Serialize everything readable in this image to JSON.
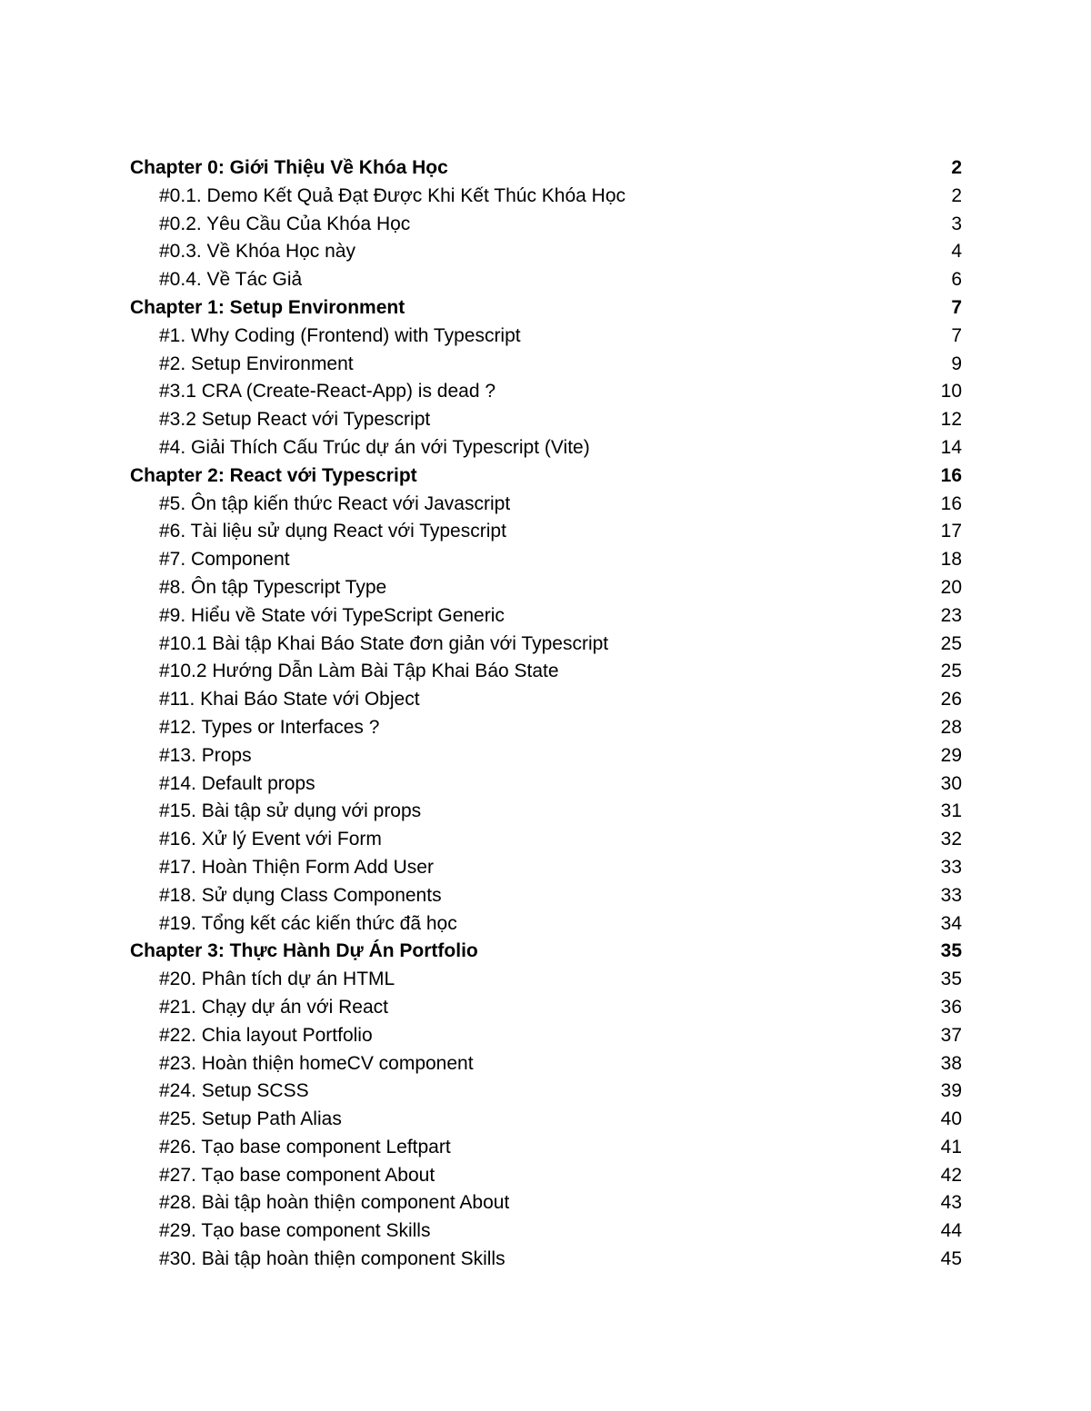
{
  "document": {
    "type": "table-of-contents",
    "chapters": [
      {
        "title": "Chapter 0: Giới Thiệu Về Khóa Học",
        "page": "2",
        "items": [
          {
            "label": "#0.1. Demo Kết Quả Đạt Được Khi Kết Thúc Khóa Học",
            "page": "2"
          },
          {
            "label": "#0.2. Yêu Cầu Của Khóa Học",
            "page": "3"
          },
          {
            "label": "#0.3. Về Khóa Học này",
            "page": "4"
          },
          {
            "label": "#0.4. Về Tác Giả",
            "page": "6"
          }
        ]
      },
      {
        "title": "Chapter 1: Setup Environment",
        "page": "7",
        "items": [
          {
            "label": "#1. Why Coding (Frontend) with Typescript",
            "page": "7"
          },
          {
            "label": "#2. Setup Environment",
            "page": "9"
          },
          {
            "label": "#3.1 CRA (Create-React-App) is dead ?",
            "page": "10"
          },
          {
            "label": "#3.2 Setup React với Typescript",
            "page": "12"
          },
          {
            "label": "#4. Giải Thích Cấu Trúc dự án với Typescript (Vite)",
            "page": "14"
          }
        ]
      },
      {
        "title": "Chapter 2: React với Typescript",
        "page": "16",
        "items": [
          {
            "label": "#5. Ôn tập kiến thức React với Javascript",
            "page": "16"
          },
          {
            "label": "#6. Tài liệu sử dụng React với Typescript",
            "page": "17"
          },
          {
            "label": "#7. Component",
            "page": "18"
          },
          {
            "label": "#8. Ôn tập Typescript Type",
            "page": "20"
          },
          {
            "label": "#9. Hiểu về State với TypeScript Generic",
            "page": "23"
          },
          {
            "label": "#10.1 Bài tập Khai Báo State đơn giản với Typescript",
            "page": "25"
          },
          {
            "label": "#10.2 Hướng Dẫn Làm Bài Tập Khai Báo State",
            "page": "25"
          },
          {
            "label": "#11. Khai Báo State với Object",
            "page": "26"
          },
          {
            "label": "#12. Types or Interfaces ?",
            "page": "28"
          },
          {
            "label": "#13. Props",
            "page": "29"
          },
          {
            "label": "#14. Default props",
            "page": "30"
          },
          {
            "label": "#15. Bài tập sử dụng với props",
            "page": "31"
          },
          {
            "label": "#16. Xử lý Event với Form",
            "page": "32"
          },
          {
            "label": "#17. Hoàn Thiện Form Add User",
            "page": "33"
          },
          {
            "label": "#18. Sử dụng Class Components",
            "page": "33"
          },
          {
            "label": "#19. Tổng kết các kiến thức đã học",
            "page": "34"
          }
        ]
      },
      {
        "title": "Chapter 3: Thực Hành Dự Án Portfolio",
        "page": "35",
        "items": [
          {
            "label": "#20. Phân tích dự án HTML",
            "page": "35"
          },
          {
            "label": "#21. Chạy dự án với React",
            "page": "36"
          },
          {
            "label": "#22. Chia layout Portfolio",
            "page": "37"
          },
          {
            "label": "#23. Hoàn thiện homeCV component",
            "page": "38"
          },
          {
            "label": "#24. Setup SCSS",
            "page": "39"
          },
          {
            "label": "#25. Setup Path Alias",
            "page": "40"
          },
          {
            "label": "#26. Tạo base component Leftpart",
            "page": "41"
          },
          {
            "label": "#27. Tạo base component About",
            "page": "42"
          },
          {
            "label": "#28. Bài tập hoàn thiện component About",
            "page": "43"
          },
          {
            "label": "#29. Tạo base component Skills",
            "page": "44"
          },
          {
            "label": "#30. Bài tập hoàn thiện component Skills",
            "page": "45"
          }
        ]
      }
    ]
  }
}
